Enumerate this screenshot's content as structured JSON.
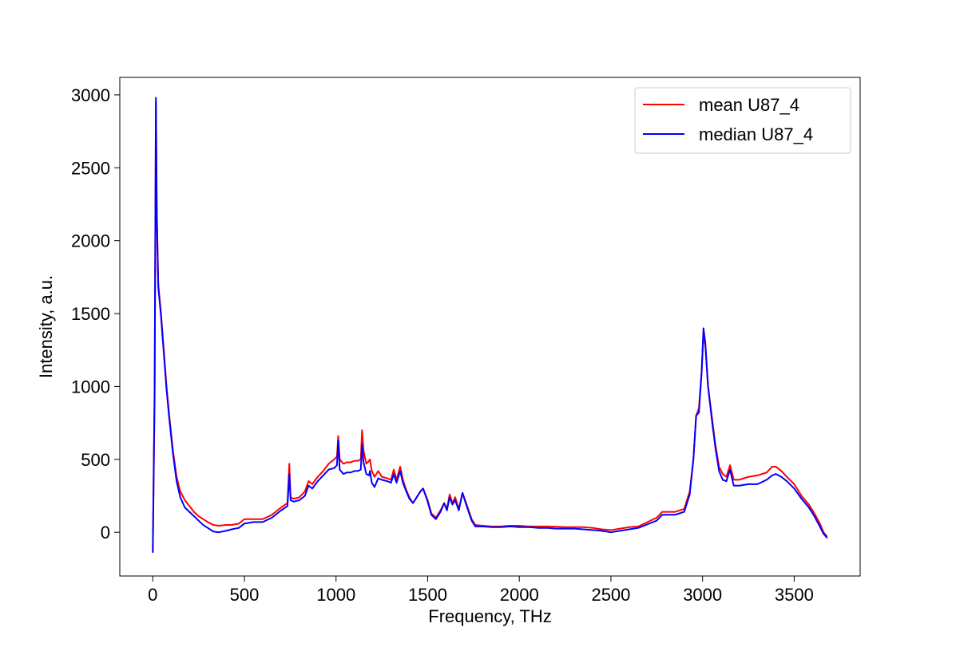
{
  "chart_data": {
    "type": "line",
    "title": "",
    "xlabel": "Frequency, THz",
    "ylabel": "Intensity, a.u.",
    "xlim": [
      -180,
      3860
    ],
    "ylim": [
      -300,
      3120
    ],
    "xticks": [
      0,
      500,
      1000,
      1500,
      2000,
      2500,
      3000,
      3500
    ],
    "yticks": [
      0,
      500,
      1000,
      1500,
      2000,
      2500,
      3000
    ],
    "grid": false,
    "legend_position": "top-right",
    "colors": {
      "mean": "#ff0000",
      "median": "#0000ff"
    },
    "series": [
      {
        "name": "mean U87_4",
        "color": "#ff0000",
        "points": [
          [
            0,
            -140
          ],
          [
            10,
            900
          ],
          [
            17,
            2950
          ],
          [
            22,
            2200
          ],
          [
            30,
            1700
          ],
          [
            45,
            1500
          ],
          [
            60,
            1250
          ],
          [
            75,
            1000
          ],
          [
            90,
            800
          ],
          [
            110,
            560
          ],
          [
            130,
            380
          ],
          [
            150,
            280
          ],
          [
            175,
            220
          ],
          [
            200,
            180
          ],
          [
            225,
            140
          ],
          [
            250,
            110
          ],
          [
            275,
            90
          ],
          [
            300,
            70
          ],
          [
            330,
            50
          ],
          [
            360,
            45
          ],
          [
            400,
            50
          ],
          [
            430,
            50
          ],
          [
            470,
            60
          ],
          [
            500,
            90
          ],
          [
            550,
            90
          ],
          [
            600,
            90
          ],
          [
            650,
            120
          ],
          [
            700,
            170
          ],
          [
            735,
            200
          ],
          [
            745,
            470
          ],
          [
            752,
            240
          ],
          [
            770,
            230
          ],
          [
            800,
            240
          ],
          [
            830,
            280
          ],
          [
            850,
            350
          ],
          [
            870,
            330
          ],
          [
            900,
            380
          ],
          [
            930,
            420
          ],
          [
            960,
            470
          ],
          [
            990,
            500
          ],
          [
            1005,
            520
          ],
          [
            1012,
            660
          ],
          [
            1020,
            500
          ],
          [
            1040,
            470
          ],
          [
            1060,
            480
          ],
          [
            1080,
            480
          ],
          [
            1100,
            490
          ],
          [
            1120,
            490
          ],
          [
            1135,
            500
          ],
          [
            1142,
            700
          ],
          [
            1150,
            560
          ],
          [
            1165,
            470
          ],
          [
            1180,
            490
          ],
          [
            1185,
            500
          ],
          [
            1195,
            420
          ],
          [
            1210,
            380
          ],
          [
            1230,
            420
          ],
          [
            1250,
            380
          ],
          [
            1280,
            370
          ],
          [
            1300,
            360
          ],
          [
            1315,
            430
          ],
          [
            1330,
            360
          ],
          [
            1350,
            450
          ],
          [
            1365,
            360
          ],
          [
            1380,
            300
          ],
          [
            1400,
            240
          ],
          [
            1420,
            200
          ],
          [
            1440,
            240
          ],
          [
            1460,
            280
          ],
          [
            1475,
            300
          ],
          [
            1500,
            220
          ],
          [
            1520,
            130
          ],
          [
            1545,
            100
          ],
          [
            1570,
            150
          ],
          [
            1590,
            200
          ],
          [
            1605,
            160
          ],
          [
            1620,
            260
          ],
          [
            1635,
            200
          ],
          [
            1650,
            240
          ],
          [
            1670,
            160
          ],
          [
            1690,
            270
          ],
          [
            1710,
            200
          ],
          [
            1740,
            90
          ],
          [
            1760,
            50
          ],
          [
            1800,
            45
          ],
          [
            1850,
            40
          ],
          [
            1900,
            40
          ],
          [
            1950,
            45
          ],
          [
            2000,
            45
          ],
          [
            2050,
            40
          ],
          [
            2100,
            40
          ],
          [
            2150,
            40
          ],
          [
            2200,
            38
          ],
          [
            2250,
            35
          ],
          [
            2300,
            35
          ],
          [
            2350,
            35
          ],
          [
            2400,
            30
          ],
          [
            2450,
            20
          ],
          [
            2500,
            15
          ],
          [
            2550,
            25
          ],
          [
            2600,
            35
          ],
          [
            2650,
            40
          ],
          [
            2700,
            70
          ],
          [
            2750,
            100
          ],
          [
            2780,
            140
          ],
          [
            2800,
            140
          ],
          [
            2850,
            140
          ],
          [
            2900,
            160
          ],
          [
            2930,
            280
          ],
          [
            2950,
            500
          ],
          [
            2965,
            800
          ],
          [
            2980,
            850
          ],
          [
            2995,
            1100
          ],
          [
            3005,
            1360
          ],
          [
            3015,
            1280
          ],
          [
            3030,
            1000
          ],
          [
            3050,
            800
          ],
          [
            3070,
            600
          ],
          [
            3090,
            450
          ],
          [
            3110,
            400
          ],
          [
            3130,
            380
          ],
          [
            3150,
            460
          ],
          [
            3170,
            360
          ],
          [
            3200,
            360
          ],
          [
            3250,
            380
          ],
          [
            3300,
            390
          ],
          [
            3350,
            410
          ],
          [
            3380,
            450
          ],
          [
            3400,
            450
          ],
          [
            3430,
            420
          ],
          [
            3460,
            380
          ],
          [
            3500,
            330
          ],
          [
            3540,
            250
          ],
          [
            3580,
            190
          ],
          [
            3610,
            130
          ],
          [
            3640,
            60
          ],
          [
            3660,
            0
          ],
          [
            3680,
            -30
          ]
        ]
      },
      {
        "name": "median U87_4",
        "color": "#0000ff",
        "points": [
          [
            0,
            -140
          ],
          [
            10,
            1000
          ],
          [
            17,
            2980
          ],
          [
            22,
            2150
          ],
          [
            30,
            1680
          ],
          [
            45,
            1480
          ],
          [
            60,
            1230
          ],
          [
            75,
            980
          ],
          [
            90,
            780
          ],
          [
            110,
            540
          ],
          [
            130,
            350
          ],
          [
            150,
            240
          ],
          [
            175,
            170
          ],
          [
            200,
            140
          ],
          [
            225,
            110
          ],
          [
            250,
            80
          ],
          [
            275,
            50
          ],
          [
            300,
            30
          ],
          [
            330,
            5
          ],
          [
            360,
            0
          ],
          [
            400,
            10
          ],
          [
            430,
            20
          ],
          [
            470,
            30
          ],
          [
            500,
            60
          ],
          [
            550,
            70
          ],
          [
            600,
            70
          ],
          [
            650,
            100
          ],
          [
            700,
            150
          ],
          [
            735,
            180
          ],
          [
            745,
            400
          ],
          [
            752,
            220
          ],
          [
            770,
            210
          ],
          [
            800,
            220
          ],
          [
            830,
            250
          ],
          [
            850,
            320
          ],
          [
            870,
            300
          ],
          [
            900,
            350
          ],
          [
            930,
            390
          ],
          [
            960,
            430
          ],
          [
            990,
            440
          ],
          [
            1005,
            460
          ],
          [
            1012,
            630
          ],
          [
            1020,
            430
          ],
          [
            1040,
            400
          ],
          [
            1060,
            410
          ],
          [
            1080,
            410
          ],
          [
            1100,
            420
          ],
          [
            1120,
            420
          ],
          [
            1135,
            430
          ],
          [
            1142,
            600
          ],
          [
            1150,
            480
          ],
          [
            1165,
            400
          ],
          [
            1180,
            390
          ],
          [
            1185,
            420
          ],
          [
            1195,
            340
          ],
          [
            1210,
            310
          ],
          [
            1230,
            370
          ],
          [
            1250,
            360
          ],
          [
            1280,
            350
          ],
          [
            1300,
            340
          ],
          [
            1315,
            400
          ],
          [
            1330,
            340
          ],
          [
            1350,
            420
          ],
          [
            1365,
            340
          ],
          [
            1380,
            290
          ],
          [
            1400,
            230
          ],
          [
            1420,
            200
          ],
          [
            1440,
            240
          ],
          [
            1460,
            280
          ],
          [
            1475,
            300
          ],
          [
            1500,
            210
          ],
          [
            1520,
            120
          ],
          [
            1545,
            90
          ],
          [
            1570,
            140
          ],
          [
            1590,
            200
          ],
          [
            1605,
            150
          ],
          [
            1620,
            240
          ],
          [
            1635,
            190
          ],
          [
            1650,
            220
          ],
          [
            1670,
            150
          ],
          [
            1690,
            270
          ],
          [
            1710,
            190
          ],
          [
            1740,
            80
          ],
          [
            1760,
            40
          ],
          [
            1800,
            40
          ],
          [
            1850,
            35
          ],
          [
            1900,
            35
          ],
          [
            1950,
            40
          ],
          [
            2000,
            35
          ],
          [
            2050,
            35
          ],
          [
            2100,
            30
          ],
          [
            2150,
            30
          ],
          [
            2200,
            25
          ],
          [
            2250,
            25
          ],
          [
            2300,
            25
          ],
          [
            2350,
            20
          ],
          [
            2400,
            15
          ],
          [
            2450,
            10
          ],
          [
            2500,
            0
          ],
          [
            2550,
            10
          ],
          [
            2600,
            20
          ],
          [
            2650,
            30
          ],
          [
            2700,
            55
          ],
          [
            2750,
            80
          ],
          [
            2780,
            120
          ],
          [
            2800,
            120
          ],
          [
            2850,
            120
          ],
          [
            2900,
            140
          ],
          [
            2930,
            260
          ],
          [
            2950,
            500
          ],
          [
            2965,
            800
          ],
          [
            2980,
            820
          ],
          [
            2995,
            1100
          ],
          [
            3005,
            1400
          ],
          [
            3015,
            1300
          ],
          [
            3030,
            1000
          ],
          [
            3050,
            780
          ],
          [
            3070,
            580
          ],
          [
            3090,
            420
          ],
          [
            3110,
            360
          ],
          [
            3130,
            350
          ],
          [
            3150,
            430
          ],
          [
            3170,
            320
          ],
          [
            3200,
            320
          ],
          [
            3250,
            330
          ],
          [
            3300,
            330
          ],
          [
            3350,
            360
          ],
          [
            3380,
            390
          ],
          [
            3400,
            400
          ],
          [
            3430,
            380
          ],
          [
            3460,
            350
          ],
          [
            3500,
            300
          ],
          [
            3540,
            230
          ],
          [
            3580,
            170
          ],
          [
            3610,
            110
          ],
          [
            3640,
            40
          ],
          [
            3660,
            -10
          ],
          [
            3680,
            -40
          ]
        ]
      }
    ]
  }
}
